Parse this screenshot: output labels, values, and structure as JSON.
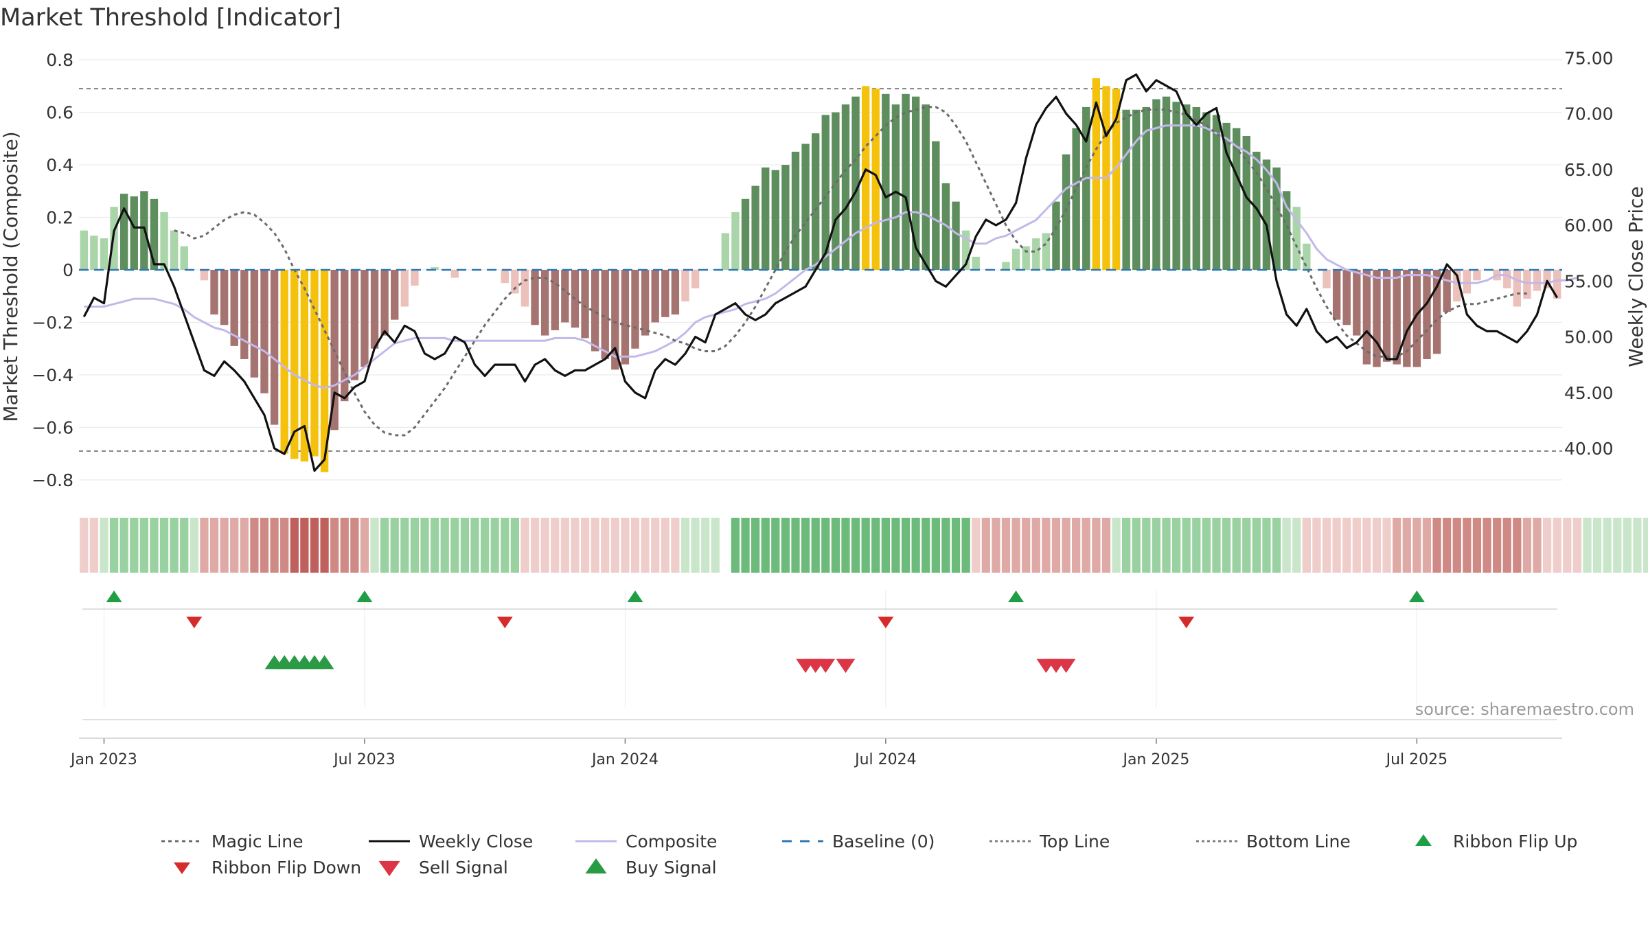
{
  "title": "Market Threshold [Indicator]",
  "source": "source: sharemaestro.com",
  "colors": {
    "magic": "#6b6b6b",
    "close": "#111111",
    "composite": "#c3b8ea",
    "baseline": "#2f78b4",
    "ref": "#808080",
    "pos_strong": "#5e8e5e",
    "pos_weak": "#a9d5a9",
    "neg_strong": "#a67470",
    "neg_weak": "#ecc0bb",
    "extreme": "#f4c20d",
    "flip_up": "#1f9e45",
    "flip_down": "#d62b2b",
    "sell": "#dc3545",
    "buy": "#2a9a45"
  },
  "chart_data": {
    "type": "bar+line",
    "title": "Market Threshold [Indicator]",
    "ylabel_left": "Market Threshold (Composite)",
    "ylabel_right": "Weekly Close Price",
    "ylim_left": [
      -0.85,
      0.85
    ],
    "ylim_right": [
      36.0,
      76.0
    ],
    "yticks_left": [
      -0.8,
      -0.6,
      -0.4,
      -0.2,
      0,
      0.2,
      0.4,
      0.6,
      0.8
    ],
    "yticks_left_labels": [
      "−0.8",
      "−0.6",
      "−0.4",
      "−0.2",
      "0",
      "0.2",
      "0.4",
      "0.6",
      "0.8"
    ],
    "yticks_right": [
      "40.00",
      "45.00",
      "50.00",
      "55.00",
      "60.00",
      "65.00",
      "70.00",
      "75.00"
    ],
    "top_line": 0.69,
    "bottom_line": -0.69,
    "xticks": [
      "Jan 2023",
      "Jul 2023",
      "Jan 2024",
      "Jul 2024",
      "Jan 2025",
      "Jul 2025"
    ],
    "xtick_weeks": [
      0,
      26,
      52,
      78,
      105,
      131
    ],
    "week_start": -2,
    "composite_bars": [
      0.15,
      0.13,
      0.12,
      0.24,
      0.29,
      0.28,
      0.3,
      0.27,
      0.22,
      0.15,
      0.09,
      0.0,
      -0.04,
      -0.17,
      -0.21,
      -0.29,
      -0.34,
      -0.41,
      -0.47,
      -0.59,
      -0.7,
      -0.72,
      -0.73,
      -0.71,
      -0.77,
      -0.61,
      -0.5,
      -0.42,
      -0.37,
      -0.3,
      -0.25,
      -0.19,
      -0.14,
      -0.06,
      0.0,
      0.01,
      0.0,
      -0.03,
      0.0,
      0.0,
      0.0,
      0.0,
      -0.05,
      -0.09,
      -0.14,
      -0.21,
      -0.25,
      -0.23,
      -0.2,
      -0.22,
      -0.26,
      -0.31,
      -0.34,
      -0.38,
      -0.36,
      -0.3,
      -0.25,
      -0.2,
      -0.18,
      -0.17,
      -0.12,
      -0.07,
      0.0,
      0.0,
      0.14,
      0.22,
      0.27,
      0.32,
      0.39,
      0.38,
      0.4,
      0.45,
      0.48,
      0.52,
      0.59,
      0.6,
      0.63,
      0.66,
      0.7,
      0.69,
      0.67,
      0.63,
      0.67,
      0.66,
      0.63,
      0.49,
      0.33,
      0.26,
      0.15,
      0.05,
      0.0,
      0.0,
      0.03,
      0.08,
      0.09,
      0.12,
      0.14,
      0.26,
      0.44,
      0.54,
      0.62,
      0.73,
      0.7,
      0.69,
      0.61,
      0.61,
      0.62,
      0.65,
      0.66,
      0.64,
      0.63,
      0.62,
      0.6,
      0.59,
      0.56,
      0.54,
      0.51,
      0.45,
      0.42,
      0.39,
      0.3,
      0.24,
      0.1,
      0.0,
      -0.07,
      -0.19,
      -0.21,
      -0.25,
      -0.36,
      -0.37,
      -0.35,
      -0.36,
      -0.37,
      -0.37,
      -0.34,
      -0.32,
      -0.16,
      -0.12,
      -0.09,
      -0.04,
      0.0,
      -0.04,
      -0.07,
      -0.14,
      -0.11,
      -0.08,
      -0.07,
      -0.11
    ],
    "weekly_close": [
      51.8,
      53.5,
      53.0,
      59.5,
      61.5,
      59.8,
      59.8,
      56.5,
      56.5,
      54.5,
      52.0,
      49.5,
      47.0,
      46.5,
      47.8,
      47.0,
      46.0,
      44.5,
      43.0,
      40.0,
      39.5,
      41.5,
      42.0,
      38.0,
      39.0,
      45.0,
      44.5,
      45.5,
      46.0,
      49.0,
      50.5,
      49.5,
      51.0,
      50.5,
      48.5,
      48.0,
      48.5,
      50.0,
      49.5,
      47.5,
      46.5,
      47.5,
      47.5,
      47.5,
      46.0,
      47.5,
      48.0,
      47.0,
      46.5,
      47.0,
      47.0,
      47.5,
      48.0,
      49.0,
      46.0,
      45.0,
      44.5,
      47.0,
      48.0,
      47.5,
      48.5,
      50.0,
      49.5,
      52.0,
      52.5,
      53.0,
      52.0,
      51.5,
      52.0,
      53.0,
      53.5,
      54.0,
      54.5,
      56.0,
      57.5,
      60.5,
      61.5,
      63.0,
      65.0,
      64.5,
      62.5,
      63.0,
      62.5,
      58.0,
      56.5,
      55.0,
      54.5,
      55.5,
      56.5,
      59.0,
      60.5,
      60.0,
      60.5,
      62.0,
      66.0,
      69.0,
      70.5,
      71.5,
      70.0,
      69.0,
      67.5,
      71.0,
      68.0,
      69.5,
      73.0,
      73.5,
      72.0,
      73.0,
      72.5,
      72.0,
      70.0,
      69.0,
      70.0,
      70.5,
      66.5,
      64.5,
      62.5,
      61.5,
      60.0,
      55.0,
      52.0,
      51.0,
      52.5,
      50.5,
      49.5,
      50.0,
      49.0,
      49.5,
      50.5,
      49.5,
      48.0,
      48.0,
      50.5,
      52.0,
      53.0,
      54.5,
      56.5,
      55.5,
      52.0,
      51.0,
      50.5,
      50.5,
      50.0,
      49.5,
      50.5,
      52.0,
      55.0,
      53.5
    ],
    "magic_line": [
      0.15,
      0.14,
      0.12,
      0.13,
      0.16,
      0.19,
      0.21,
      0.22,
      0.21,
      0.18,
      0.14,
      0.08,
      0.0,
      -0.07,
      -0.15,
      -0.23,
      -0.31,
      -0.39,
      -0.47,
      -0.54,
      -0.59,
      -0.62,
      -0.63,
      -0.63,
      -0.6,
      -0.55,
      -0.5,
      -0.45,
      -0.39,
      -0.33,
      -0.27,
      -0.21,
      -0.16,
      -0.11,
      -0.07,
      -0.04,
      -0.03,
      -0.03,
      -0.05,
      -0.08,
      -0.11,
      -0.14,
      -0.16,
      -0.18,
      -0.2,
      -0.21,
      -0.22,
      -0.23,
      -0.24,
      -0.25,
      -0.27,
      -0.28,
      -0.3,
      -0.31,
      -0.31,
      -0.29,
      -0.25,
      -0.2,
      -0.14,
      -0.07,
      0.0,
      0.07,
      0.13,
      0.18,
      0.23,
      0.28,
      0.33,
      0.38,
      0.42,
      0.47,
      0.51,
      0.55,
      0.58,
      0.6,
      0.61,
      0.62,
      0.62,
      0.6,
      0.55,
      0.49,
      0.41,
      0.33,
      0.25,
      0.17,
      0.11,
      0.07,
      0.07,
      0.1,
      0.16,
      0.23,
      0.31,
      0.39,
      0.46,
      0.52,
      0.56,
      0.58,
      0.6,
      0.61,
      0.61,
      0.61,
      0.6,
      0.59,
      0.57,
      0.55,
      0.52,
      0.49,
      0.46,
      0.42,
      0.37,
      0.31,
      0.24,
      0.17,
      0.09,
      0.01,
      -0.07,
      -0.14,
      -0.2,
      -0.25,
      -0.28,
      -0.31,
      -0.33,
      -0.33,
      -0.33,
      -0.31,
      -0.27,
      -0.23,
      -0.19,
      -0.16,
      -0.14,
      -0.13,
      -0.13,
      -0.12,
      -0.11,
      -0.1,
      -0.09,
      -0.09
    ],
    "magic_line_start_week": 7,
    "composite_line": [
      -0.14,
      -0.14,
      -0.14,
      -0.13,
      -0.12,
      -0.11,
      -0.11,
      -0.11,
      -0.12,
      -0.13,
      -0.15,
      -0.18,
      -0.2,
      -0.22,
      -0.23,
      -0.25,
      -0.27,
      -0.29,
      -0.31,
      -0.34,
      -0.37,
      -0.4,
      -0.42,
      -0.44,
      -0.45,
      -0.44,
      -0.42,
      -0.4,
      -0.37,
      -0.34,
      -0.31,
      -0.28,
      -0.27,
      -0.26,
      -0.26,
      -0.26,
      -0.26,
      -0.27,
      -0.27,
      -0.27,
      -0.27,
      -0.27,
      -0.27,
      -0.27,
      -0.27,
      -0.27,
      -0.27,
      -0.26,
      -0.26,
      -0.26,
      -0.27,
      -0.29,
      -0.31,
      -0.33,
      -0.33,
      -0.33,
      -0.32,
      -0.31,
      -0.29,
      -0.27,
      -0.24,
      -0.2,
      -0.18,
      -0.17,
      -0.16,
      -0.15,
      -0.13,
      -0.12,
      -0.11,
      -0.09,
      -0.06,
      -0.03,
      0.0,
      0.02,
      0.05,
      0.08,
      0.11,
      0.14,
      0.16,
      0.18,
      0.19,
      0.2,
      0.22,
      0.22,
      0.21,
      0.19,
      0.17,
      0.14,
      0.12,
      0.1,
      0.1,
      0.12,
      0.13,
      0.15,
      0.17,
      0.19,
      0.23,
      0.27,
      0.31,
      0.33,
      0.35,
      0.35,
      0.35,
      0.39,
      0.44,
      0.49,
      0.53,
      0.54,
      0.55,
      0.55,
      0.55,
      0.55,
      0.54,
      0.52,
      0.5,
      0.47,
      0.45,
      0.42,
      0.38,
      0.33,
      0.24,
      0.19,
      0.14,
      0.08,
      0.04,
      0.02,
      0.0,
      -0.01,
      -0.02,
      -0.03,
      -0.03,
      -0.03,
      -0.02,
      -0.02,
      -0.02,
      -0.03,
      -0.04,
      -0.05,
      -0.05,
      -0.05,
      -0.04,
      -0.02,
      -0.02,
      -0.04,
      -0.05,
      -0.05,
      -0.05,
      -0.04,
      -0.04,
      -0.03
    ],
    "ribbon": [
      -1,
      -1,
      1,
      2,
      2,
      2,
      2,
      2,
      2,
      2,
      2,
      1,
      -2,
      -2,
      -2,
      -2,
      -2,
      -3,
      -3,
      -3,
      -3,
      -4,
      -4,
      -4,
      -4,
      -3,
      -3,
      -3,
      -2,
      1,
      2,
      2,
      2,
      2,
      2,
      2,
      2,
      2,
      2,
      2,
      2,
      2,
      2,
      2,
      -1,
      -1,
      -1,
      -1,
      -1,
      -1,
      -1,
      -1,
      -1,
      -1,
      -1,
      -1,
      -1,
      -1,
      -1,
      -1,
      1,
      1,
      1,
      1,
      0,
      3,
      3,
      3,
      3,
      3,
      3,
      3,
      3,
      3,
      3,
      3,
      3,
      3,
      3,
      3,
      3,
      3,
      3,
      3,
      3,
      3,
      3,
      3,
      3,
      -1,
      -2,
      -2,
      -2,
      -2,
      -2,
      -2,
      -2,
      -2,
      -2,
      -2,
      -2,
      -2,
      -2,
      1,
      2,
      2,
      2,
      2,
      2,
      2,
      2,
      2,
      2,
      2,
      2,
      2,
      2,
      2,
      2,
      2,
      1,
      1,
      -1,
      -1,
      -1,
      -1,
      -1,
      -1,
      -1,
      -1,
      -1,
      -2,
      -2,
      -2,
      -2,
      -3,
      -3,
      -3,
      -3,
      -3,
      -3,
      -3,
      -3,
      -3,
      -2,
      -2,
      -1,
      -1,
      -1,
      -1,
      1,
      1,
      1,
      1,
      1,
      1,
      1,
      1,
      1
    ],
    "ribbon_flip_up_weeks": [
      1,
      26,
      53,
      91,
      131
    ],
    "ribbon_flip_down_weeks": [
      9,
      40,
      78,
      108
    ],
    "buy_signal_weeks": [
      17,
      18,
      19,
      20,
      21,
      22
    ],
    "sell_signal_weeks": [
      70,
      71,
      72,
      74,
      94,
      95,
      96
    ],
    "legend": [
      "Magic Line",
      "Weekly Close",
      "Composite",
      "Baseline (0)",
      "Top Line",
      "Bottom Line",
      "Ribbon Flip Up",
      "Ribbon Flip Down",
      "Sell Signal",
      "Buy Signal"
    ]
  }
}
